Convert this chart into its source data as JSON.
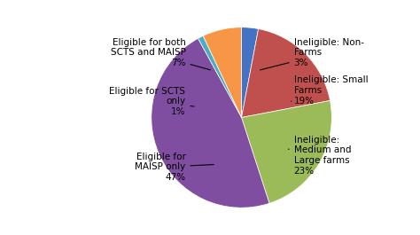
{
  "values": [
    3,
    19,
    23,
    47,
    1,
    7
  ],
  "colors": [
    "#4472C4",
    "#C0504D",
    "#9BBB59",
    "#7F4EA0",
    "#4BACC6",
    "#F79646"
  ],
  "startangle": 90,
  "background_color": "#ffffff",
  "figsize": [
    4.74,
    2.65
  ],
  "dpi": 100,
  "annotations": [
    {
      "label": "Ineligible: Non-\nFarms\n3%",
      "point": [
        0.18,
        0.52
      ],
      "text": [
        0.58,
        0.72
      ],
      "ha": "left"
    },
    {
      "label": "Ineligible: Small\nFarms\n19%",
      "point": [
        0.55,
        0.18
      ],
      "text": [
        0.58,
        0.3
      ],
      "ha": "left"
    },
    {
      "label": "Ineligible:\nMedium and\nLarge farms\n23%",
      "point": [
        0.52,
        -0.35
      ],
      "text": [
        0.58,
        -0.42
      ],
      "ha": "left"
    },
    {
      "label": "Eligible for\nMAISP only\n47%",
      "point": [
        -0.28,
        -0.52
      ],
      "text": [
        -0.62,
        -0.55
      ],
      "ha": "right"
    },
    {
      "label": "Eligible for SCTS\nonly\n1%",
      "point": [
        -0.5,
        0.12
      ],
      "text": [
        -0.62,
        0.18
      ],
      "ha": "right"
    },
    {
      "label": "Eligible for both\nSCTS and MAISP\n7%",
      "point": [
        -0.32,
        0.52
      ],
      "text": [
        -0.62,
        0.72
      ],
      "ha": "right"
    }
  ]
}
